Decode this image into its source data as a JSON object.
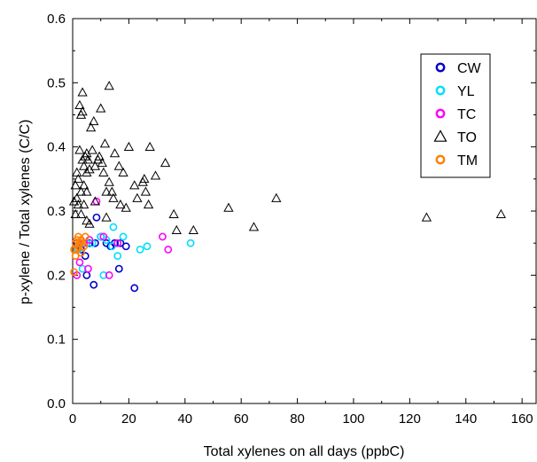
{
  "chart_data": {
    "type": "scatter",
    "xlabel": "Total xylenes on all days (ppbC)",
    "ylabel": "p-xylene / Total xylenes (C/C)",
    "xlim": [
      0,
      165
    ],
    "ylim": [
      0,
      0.6
    ],
    "xticks": [
      0,
      20,
      40,
      60,
      80,
      100,
      120,
      140,
      160
    ],
    "yticks": [
      0.0,
      0.1,
      0.2,
      0.3,
      0.4,
      0.5,
      0.6
    ],
    "xtick_labels": [
      "0",
      "20",
      "40",
      "60",
      "80",
      "100",
      "120",
      "140",
      "160"
    ],
    "ytick_labels": [
      "0.0",
      "0.1",
      "0.2",
      "0.3",
      "0.4",
      "0.5",
      "0.6"
    ],
    "grid": false,
    "legend_position": "top-right",
    "series": [
      {
        "name": "CW",
        "marker": "circle",
        "color": "#0000cc",
        "points": [
          [
            1.5,
            0.25
          ],
          [
            3,
            0.24
          ],
          [
            4.5,
            0.23
          ],
          [
            5,
            0.2
          ],
          [
            6,
            0.25
          ],
          [
            7.5,
            0.185
          ],
          [
            8,
            0.25
          ],
          [
            8.5,
            0.29
          ],
          [
            10,
            0.26
          ],
          [
            12,
            0.25
          ],
          [
            13.5,
            0.245
          ],
          [
            15,
            0.25
          ],
          [
            16.5,
            0.21
          ],
          [
            17,
            0.25
          ],
          [
            19,
            0.245
          ],
          [
            22,
            0.18
          ]
        ]
      },
      {
        "name": "YL",
        "marker": "circle",
        "color": "#00e0ff",
        "points": [
          [
            2,
            0.24
          ],
          [
            3.5,
            0.21
          ],
          [
            5,
            0.25
          ],
          [
            7,
            0.25
          ],
          [
            10,
            0.26
          ],
          [
            11,
            0.2
          ],
          [
            12,
            0.255
          ],
          [
            14,
            0.245
          ],
          [
            14.5,
            0.275
          ],
          [
            16,
            0.23
          ],
          [
            18,
            0.26
          ],
          [
            24,
            0.24
          ],
          [
            26.5,
            0.245
          ],
          [
            42,
            0.25
          ]
        ]
      },
      {
        "name": "TC",
        "marker": "circle",
        "color": "#ff00ff",
        "points": [
          [
            1.5,
            0.2
          ],
          [
            2.5,
            0.22
          ],
          [
            4,
            0.25
          ],
          [
            5.5,
            0.21
          ],
          [
            6,
            0.255
          ],
          [
            8.5,
            0.315
          ],
          [
            11,
            0.26
          ],
          [
            13,
            0.2
          ],
          [
            16,
            0.25
          ],
          [
            32,
            0.26
          ],
          [
            34,
            0.24
          ]
        ]
      },
      {
        "name": "TO",
        "marker": "triangle",
        "color": "#000000",
        "points": [
          [
            0.5,
            0.315
          ],
          [
            1,
            0.34
          ],
          [
            1,
            0.295
          ],
          [
            1.5,
            0.36
          ],
          [
            1.5,
            0.32
          ],
          [
            2,
            0.35
          ],
          [
            2,
            0.31
          ],
          [
            2.5,
            0.395
          ],
          [
            2.5,
            0.465
          ],
          [
            3,
            0.45
          ],
          [
            3,
            0.33
          ],
          [
            3,
            0.295
          ],
          [
            3.5,
            0.485
          ],
          [
            3.5,
            0.455
          ],
          [
            3.5,
            0.38
          ],
          [
            4,
            0.37
          ],
          [
            4,
            0.34
          ],
          [
            4,
            0.31
          ],
          [
            4.5,
            0.385
          ],
          [
            5,
            0.39
          ],
          [
            5,
            0.36
          ],
          [
            5,
            0.33
          ],
          [
            5,
            0.285
          ],
          [
            5.5,
            0.38
          ],
          [
            6,
            0.365
          ],
          [
            6,
            0.28
          ],
          [
            6.5,
            0.43
          ],
          [
            7,
            0.395
          ],
          [
            7.5,
            0.44
          ],
          [
            8,
            0.37
          ],
          [
            8,
            0.315
          ],
          [
            9,
            0.38
          ],
          [
            9.5,
            0.385
          ],
          [
            10,
            0.46
          ],
          [
            10.5,
            0.375
          ],
          [
            11,
            0.36
          ],
          [
            11.5,
            0.405
          ],
          [
            12,
            0.29
          ],
          [
            12,
            0.33
          ],
          [
            13,
            0.345
          ],
          [
            13,
            0.495
          ],
          [
            14,
            0.33
          ],
          [
            14.5,
            0.32
          ],
          [
            15,
            0.39
          ],
          [
            16.5,
            0.37
          ],
          [
            17,
            0.31
          ],
          [
            18,
            0.36
          ],
          [
            19,
            0.305
          ],
          [
            20,
            0.4
          ],
          [
            22,
            0.34
          ],
          [
            23,
            0.32
          ],
          [
            25,
            0.345
          ],
          [
            25.5,
            0.35
          ],
          [
            26,
            0.33
          ],
          [
            27,
            0.31
          ],
          [
            27.5,
            0.4
          ],
          [
            29.5,
            0.355
          ],
          [
            33,
            0.375
          ],
          [
            36,
            0.295
          ],
          [
            37,
            0.27
          ],
          [
            43,
            0.27
          ],
          [
            55.5,
            0.305
          ],
          [
            64.5,
            0.275
          ],
          [
            72.5,
            0.32
          ],
          [
            126,
            0.29
          ],
          [
            152.5,
            0.295
          ]
        ]
      },
      {
        "name": "TM",
        "marker": "circle",
        "color": "#ff8000",
        "points": [
          [
            0.5,
            0.205
          ],
          [
            0.5,
            0.24
          ],
          [
            1,
            0.25
          ],
          [
            1,
            0.23
          ],
          [
            1.5,
            0.255
          ],
          [
            1.5,
            0.24
          ],
          [
            2,
            0.26
          ],
          [
            2,
            0.245
          ],
          [
            2.5,
            0.25
          ],
          [
            3,
            0.235
          ],
          [
            3,
            0.255
          ],
          [
            3.5,
            0.25
          ],
          [
            4,
            0.245
          ],
          [
            4.5,
            0.26
          ]
        ]
      }
    ]
  }
}
